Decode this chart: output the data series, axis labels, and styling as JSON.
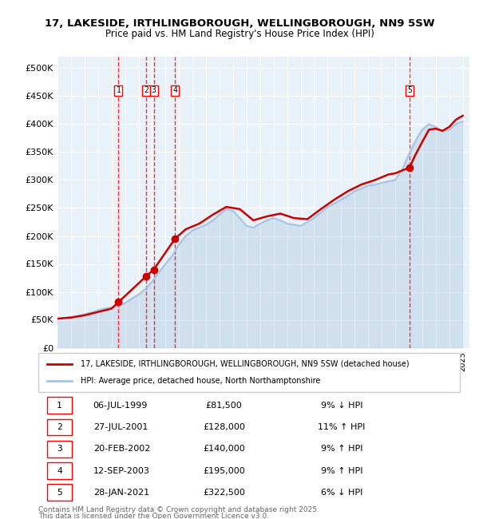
{
  "title_line1": "17, LAKESIDE, IRTHLINGBOROUGH, WELLINGBOROUGH, NN9 5SW",
  "title_line2": "Price paid vs. HM Land Registry's House Price Index (HPI)",
  "legend_line1": "17, LAKESIDE, IRTHLINGBOROUGH, WELLINGBOROUGH, NN9 5SW (detached house)",
  "legend_line2": "HPI: Average price, detached house, North Northamptonshire",
  "footer_line1": "Contains HM Land Registry data © Crown copyright and database right 2025.",
  "footer_line2": "This data is licensed under the Open Government Licence v3.0.",
  "sale_color": "#cc0000",
  "hpi_color": "#a8c4e0",
  "ylim": [
    0,
    520000
  ],
  "yticks": [
    0,
    50000,
    100000,
    150000,
    200000,
    250000,
    300000,
    350000,
    400000,
    450000,
    500000
  ],
  "ytick_labels": [
    "£0",
    "£50K",
    "£100K",
    "£150K",
    "£200K",
    "£250K",
    "£300K",
    "£350K",
    "£400K",
    "£450K",
    "£500K"
  ],
  "xlim_start": 1995.0,
  "xlim_end": 2025.5,
  "transactions": [
    {
      "id": 1,
      "date_str": "06-JUL-1999",
      "date_x": 1999.51,
      "price": 81500,
      "pct": "9%",
      "dir": "↓",
      "label": "1"
    },
    {
      "id": 2,
      "date_str": "27-JUL-2001",
      "date_x": 2001.57,
      "price": 128000,
      "pct": "11%",
      "dir": "↑",
      "label": "2"
    },
    {
      "id": 3,
      "date_str": "20-FEB-2002",
      "date_x": 2002.13,
      "price": 140000,
      "pct": "9%",
      "dir": "↑",
      "label": "3"
    },
    {
      "id": 4,
      "date_str": "12-SEP-2003",
      "date_x": 2003.7,
      "price": 195000,
      "pct": "9%",
      "dir": "↑",
      "label": "4"
    },
    {
      "id": 5,
      "date_str": "28-JAN-2021",
      "date_x": 2021.07,
      "price": 322500,
      "pct": "6%",
      "dir": "↓",
      "label": "5"
    }
  ],
  "table_rows": [
    {
      "id": "1",
      "date": "06-JUL-1999",
      "price": "£81,500",
      "info": "9% ↓ HPI"
    },
    {
      "id": "2",
      "date": "27-JUL-2001",
      "price": "£128,000",
      "info": "11% ↑ HPI"
    },
    {
      "id": "3",
      "date": "20-FEB-2002",
      "price": "£140,000",
      "info": "9% ↑ HPI"
    },
    {
      "id": "4",
      "date": "12-SEP-2003",
      "price": "£195,000",
      "info": "9% ↑ HPI"
    },
    {
      "id": "5",
      "date": "28-JAN-2021",
      "price": "£322,500",
      "info": "6% ↓ HPI"
    }
  ],
  "hpi_data": {
    "years": [
      1995.0,
      1995.5,
      1996.0,
      1996.5,
      1997.0,
      1997.5,
      1998.0,
      1998.5,
      1999.0,
      1999.5,
      2000.0,
      2000.5,
      2001.0,
      2001.5,
      2002.0,
      2002.5,
      2003.0,
      2003.5,
      2004.0,
      2004.5,
      2005.0,
      2005.5,
      2006.0,
      2006.5,
      2007.0,
      2007.5,
      2008.0,
      2008.5,
      2009.0,
      2009.5,
      2010.0,
      2010.5,
      2011.0,
      2011.5,
      2012.0,
      2012.5,
      2013.0,
      2013.5,
      2014.0,
      2014.5,
      2015.0,
      2015.5,
      2016.0,
      2016.5,
      2017.0,
      2017.5,
      2018.0,
      2018.5,
      2019.0,
      2019.5,
      2020.0,
      2020.5,
      2021.0,
      2021.5,
      2022.0,
      2022.5,
      2023.0,
      2023.5,
      2024.0,
      2024.5,
      2025.0
    ],
    "values": [
      52000,
      53500,
      55000,
      57000,
      60000,
      63000,
      67000,
      70000,
      72000,
      75000,
      80000,
      88000,
      95000,
      105000,
      118000,
      135000,
      150000,
      165000,
      185000,
      200000,
      210000,
      215000,
      220000,
      228000,
      238000,
      248000,
      245000,
      232000,
      218000,
      215000,
      222000,
      228000,
      232000,
      228000,
      222000,
      220000,
      218000,
      225000,
      232000,
      242000,
      252000,
      258000,
      265000,
      272000,
      280000,
      285000,
      290000,
      292000,
      295000,
      298000,
      300000,
      318000,
      345000,
      370000,
      390000,
      400000,
      395000,
      388000,
      390000,
      400000,
      405000
    ]
  },
  "sale_line_data": {
    "years": [
      1999.51,
      2001.57,
      2002.13,
      2003.7,
      2021.07
    ],
    "values": [
      81500,
      128000,
      140000,
      195000,
      322500
    ]
  },
  "sale_interpolated": {
    "years": [
      1995.0,
      1996.0,
      1997.0,
      1998.0,
      1999.0,
      1999.51,
      2001.57,
      2002.13,
      2003.7,
      2004.5,
      2005.5,
      2006.5,
      2007.5,
      2008.5,
      2009.5,
      2010.5,
      2011.5,
      2012.5,
      2013.5,
      2014.5,
      2015.5,
      2016.5,
      2017.5,
      2018.5,
      2019.5,
      2020.0,
      2021.07,
      2021.5,
      2022.0,
      2022.5,
      2023.0,
      2023.5,
      2024.0,
      2024.5,
      2025.0
    ],
    "values": [
      52000,
      54000,
      58000,
      64000,
      70000,
      81500,
      128000,
      140000,
      195000,
      212000,
      222000,
      238000,
      252000,
      248000,
      228000,
      235000,
      240000,
      232000,
      230000,
      248000,
      265000,
      280000,
      292000,
      300000,
      310000,
      312000,
      322500,
      345000,
      368000,
      390000,
      392000,
      388000,
      395000,
      408000,
      415000
    ]
  }
}
